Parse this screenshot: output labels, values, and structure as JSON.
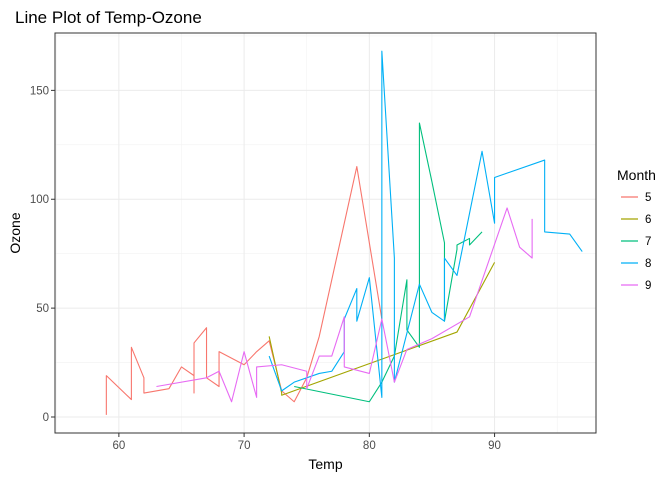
{
  "chart_data": {
    "type": "line",
    "title": "Line Plot of Temp-Ozone",
    "xlabel": "Temp",
    "ylabel": "Ozone",
    "xlim": [
      54.9,
      98.1
    ],
    "ylim": [
      -7.35,
      176.35
    ],
    "x_ticks": [
      60,
      70,
      80,
      90
    ],
    "y_ticks": [
      0,
      50,
      100,
      150
    ],
    "grid": true,
    "legend": {
      "title": "Month",
      "placement": "right"
    },
    "series": [
      {
        "name": "5",
        "color": "#F8766D",
        "points": [
          [
            59,
            1
          ],
          [
            59,
            19
          ],
          [
            61,
            8
          ],
          [
            61,
            32
          ],
          [
            62,
            18
          ],
          [
            62,
            11
          ],
          [
            64,
            13
          ],
          [
            65,
            23
          ],
          [
            66,
            19
          ],
          [
            66,
            11
          ],
          [
            66,
            34
          ],
          [
            67,
            41
          ],
          [
            67,
            18
          ],
          [
            68,
            14
          ],
          [
            68,
            30
          ],
          [
            70,
            24
          ],
          [
            71,
            30
          ],
          [
            72,
            35
          ],
          [
            73,
            12
          ],
          [
            74,
            7
          ],
          [
            75,
            18
          ],
          [
            76,
            37
          ],
          [
            79,
            115
          ],
          [
            81,
            45
          ]
        ]
      },
      {
        "name": "6",
        "color": "#A3A500",
        "points": [
          [
            72,
            37
          ],
          [
            73,
            11
          ],
          [
            73,
            10
          ],
          [
            87,
            39
          ],
          [
            90,
            71
          ]
        ]
      },
      {
        "name": "7",
        "color": "#00BF7D",
        "points": [
          [
            74,
            14
          ],
          [
            80,
            7
          ],
          [
            81,
            16
          ],
          [
            82,
            28
          ],
          [
            83,
            63
          ],
          [
            83,
            40
          ],
          [
            84,
            32
          ],
          [
            84,
            135
          ],
          [
            85,
            108
          ],
          [
            86,
            80
          ],
          [
            86,
            52
          ],
          [
            86,
            44
          ],
          [
            87,
            77
          ],
          [
            87,
            79
          ],
          [
            88,
            82
          ],
          [
            88,
            79
          ],
          [
            89,
            85
          ],
          [
            89,
            85
          ]
        ]
      },
      {
        "name": "8",
        "color": "#00B0F6",
        "points": [
          [
            72,
            28
          ],
          [
            73,
            12
          ],
          [
            74,
            16
          ],
          [
            76,
            20
          ],
          [
            77,
            21
          ],
          [
            78,
            30
          ],
          [
            78,
            45
          ],
          [
            79,
            59
          ],
          [
            79,
            44
          ],
          [
            80,
            64
          ],
          [
            81,
            9
          ],
          [
            81,
            168
          ],
          [
            82,
            73
          ],
          [
            82,
            16
          ],
          [
            84,
            61
          ],
          [
            85,
            48
          ],
          [
            86,
            44
          ],
          [
            86,
            73
          ],
          [
            87,
            65
          ],
          [
            89,
            122
          ],
          [
            90,
            89
          ],
          [
            90,
            110
          ],
          [
            94,
            118
          ],
          [
            94,
            85
          ],
          [
            96,
            84
          ],
          [
            97,
            76
          ]
        ]
      },
      {
        "name": "9",
        "color": "#E76BF3",
        "points": [
          [
            63,
            14
          ],
          [
            67,
            18
          ],
          [
            68,
            21
          ],
          [
            69,
            7
          ],
          [
            70,
            30
          ],
          [
            71,
            9
          ],
          [
            71,
            23
          ],
          [
            73,
            24
          ],
          [
            75,
            21
          ],
          [
            75,
            13
          ],
          [
            76,
            28
          ],
          [
            77,
            28
          ],
          [
            78,
            46
          ],
          [
            78,
            23
          ],
          [
            80,
            20
          ],
          [
            81,
            45
          ],
          [
            82,
            16
          ],
          [
            83,
            31
          ],
          [
            85,
            36
          ],
          [
            88,
            46
          ],
          [
            91,
            96
          ],
          [
            92,
            78
          ],
          [
            93,
            73
          ],
          [
            93,
            91
          ]
        ]
      }
    ]
  }
}
